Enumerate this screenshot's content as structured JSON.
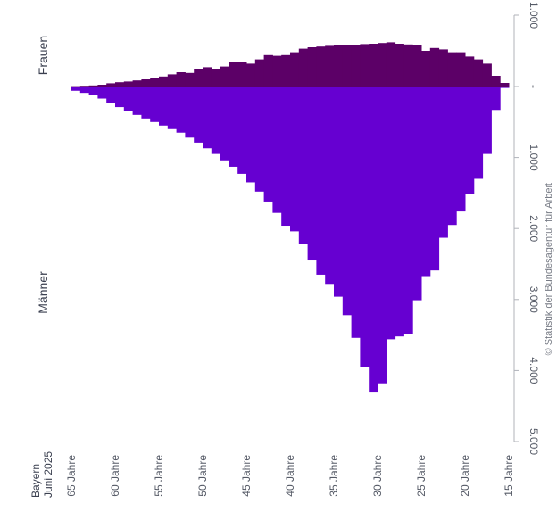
{
  "chart_data": {
    "type": "bar",
    "orientation": "rotated population pyramid (age axis horizontal, counts vertical)",
    "region_label": "Bayern",
    "period_label": "Juni 2025",
    "source": "© Statistik der Bundesagentur für Arbeit",
    "groups": [
      {
        "name": "Frauen",
        "color": "#5c0067",
        "direction": "up"
      },
      {
        "name": "Männer",
        "color": "#6600d1",
        "direction": "down"
      }
    ],
    "age_ticks": [
      {
        "age": 65,
        "label": "65 Jahre"
      },
      {
        "age": 60,
        "label": "60 Jahre"
      },
      {
        "age": 55,
        "label": "55 Jahre"
      },
      {
        "age": 50,
        "label": "50 Jahre"
      },
      {
        "age": 45,
        "label": "45 Jahre"
      },
      {
        "age": 40,
        "label": "40 Jahre"
      },
      {
        "age": 35,
        "label": "35 Jahre"
      },
      {
        "age": 30,
        "label": "30 Jahre"
      },
      {
        "age": 25,
        "label": "25 Jahre"
      },
      {
        "age": 20,
        "label": "20 Jahre"
      },
      {
        "age": 15,
        "label": "15 Jahre"
      }
    ],
    "value_ticks": [
      {
        "value": 1000,
        "label": "1.000",
        "side": "Frauen"
      },
      {
        "value": 0,
        "label": "-",
        "side": "zero"
      },
      {
        "value": 1000,
        "label": "1.000",
        "side": "Männer"
      },
      {
        "value": 2000,
        "label": "2.000",
        "side": "Männer"
      },
      {
        "value": 3000,
        "label": "3.000",
        "side": "Männer"
      },
      {
        "value": 4000,
        "label": "4.000",
        "side": "Männer"
      },
      {
        "value": 5000,
        "label": "5.000",
        "side": "Männer"
      }
    ],
    "age_range": [
      15,
      65
    ],
    "value_range_frauen": [
      0,
      1000
    ],
    "value_range_maenner": [
      0,
      5000
    ],
    "ages": [
      65,
      64,
      63,
      62,
      61,
      60,
      59,
      58,
      57,
      56,
      55,
      54,
      53,
      52,
      51,
      50,
      49,
      48,
      47,
      46,
      45,
      44,
      43,
      42,
      41,
      40,
      39,
      38,
      37,
      36,
      35,
      34,
      33,
      32,
      31,
      30,
      29,
      28,
      27,
      26,
      25,
      24,
      23,
      22,
      21,
      20,
      19,
      18,
      17,
      16
    ],
    "frauen": [
      5,
      10,
      15,
      25,
      45,
      60,
      70,
      85,
      100,
      120,
      140,
      170,
      200,
      190,
      250,
      270,
      250,
      280,
      340,
      340,
      320,
      380,
      440,
      430,
      440,
      480,
      530,
      550,
      560,
      570,
      575,
      580,
      580,
      595,
      600,
      610,
      620,
      600,
      590,
      580,
      500,
      540,
      520,
      480,
      480,
      420,
      380,
      320,
      150,
      50
    ],
    "maenner": [
      60,
      90,
      120,
      170,
      230,
      290,
      340,
      400,
      450,
      500,
      550,
      600,
      650,
      720,
      790,
      870,
      950,
      1040,
      1130,
      1230,
      1350,
      1480,
      1620,
      1780,
      1960,
      2040,
      2220,
      2450,
      2650,
      2780,
      2960,
      3220,
      3540,
      3950,
      4310,
      4180,
      3560,
      3520,
      3480,
      3010,
      2670,
      2590,
      2130,
      1950,
      1760,
      1520,
      1300,
      950,
      330,
      20
    ]
  }
}
